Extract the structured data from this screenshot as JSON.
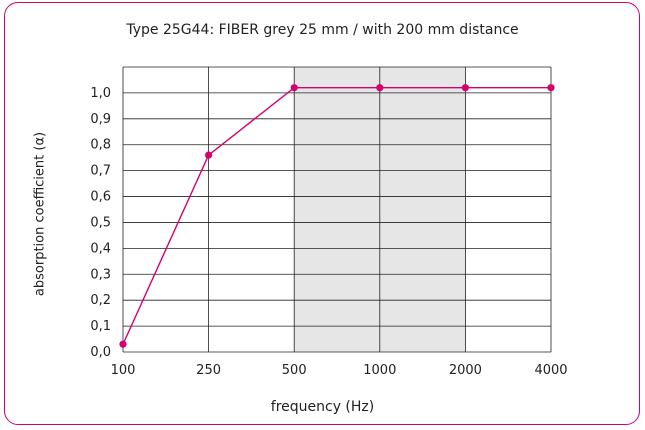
{
  "chart_data": {
    "type": "line",
    "title": "Type 25G44: FIBER grey 25 mm / with 200 mm distance",
    "xlabel": "frequency (Hz)",
    "ylabel": "absorption coefficient (α)",
    "categories": [
      "100",
      "250",
      "500",
      "1000",
      "2000",
      "4000"
    ],
    "x_scale": "log",
    "series": [
      {
        "x": [
          100,
          250,
          500,
          1000,
          2000,
          4000
        ],
        "values": [
          0.03,
          0.76,
          1.02,
          1.02,
          1.02,
          1.02
        ]
      }
    ],
    "highlight_range": [
      500,
      2000
    ],
    "ylim": [
      0,
      1.1
    ],
    "yticks": [
      0.0,
      0.1,
      0.2,
      0.3,
      0.4,
      0.5,
      0.6,
      0.7,
      0.8,
      0.9,
      1.0
    ],
    "ytick_labels": [
      "0,0",
      "0,1",
      "0,2",
      "0,3",
      "0,4",
      "0,5",
      "0,6",
      "0,7",
      "0,8",
      "0,9",
      "1,0"
    ],
    "grid": true,
    "colors": {
      "line": "#d6006e",
      "highlight": "#e6e6e6",
      "frame": "#d6006e",
      "grid": "#222222"
    }
  }
}
